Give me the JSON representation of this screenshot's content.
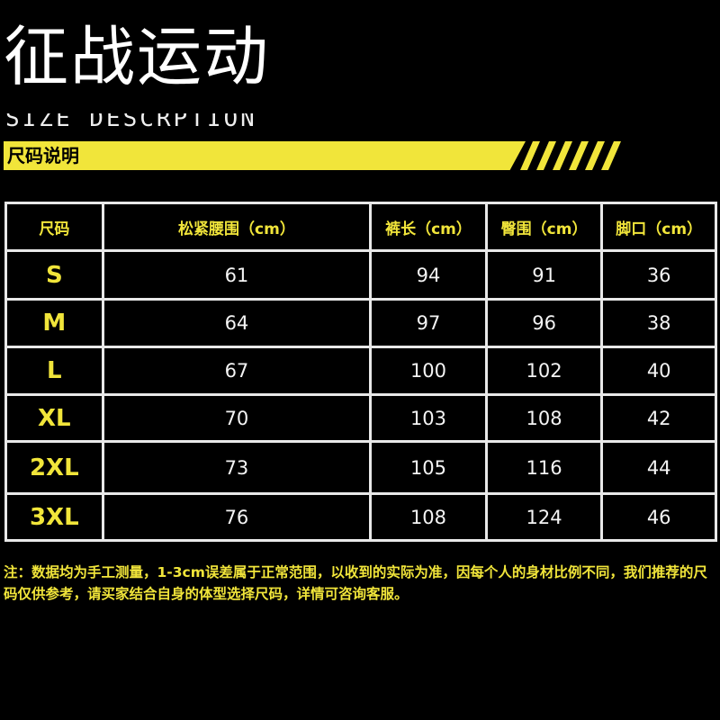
{
  "brand": "征战运动",
  "subtitle_en": "SIZE DESCRPTION",
  "banner_title": "尺码说明",
  "accent_color": "#f1e53a",
  "table": {
    "headers": [
      "尺码",
      "松紧腰围（cm）",
      "裤长（cm）",
      "臀围（cm）",
      "脚口（cm）"
    ],
    "rows": [
      [
        "S",
        "61",
        "94",
        "91",
        "36"
      ],
      [
        "M",
        "64",
        "97",
        "96",
        "38"
      ],
      [
        "L",
        "67",
        "100",
        "102",
        "40"
      ],
      [
        "XL",
        "70",
        "103",
        "108",
        "42"
      ],
      [
        "2XL",
        "73",
        "105",
        "116",
        "44"
      ],
      [
        "3XL",
        "76",
        "108",
        "124",
        "46"
      ]
    ]
  },
  "note": "注：数据均为手工测量，1-3cm误差属于正常范围，以收到的实际为准，因每个人的身材比例不同，我们推荐的尺码仅供参考，请买家结合自身的体型选择尺码，详情可咨询客服。"
}
